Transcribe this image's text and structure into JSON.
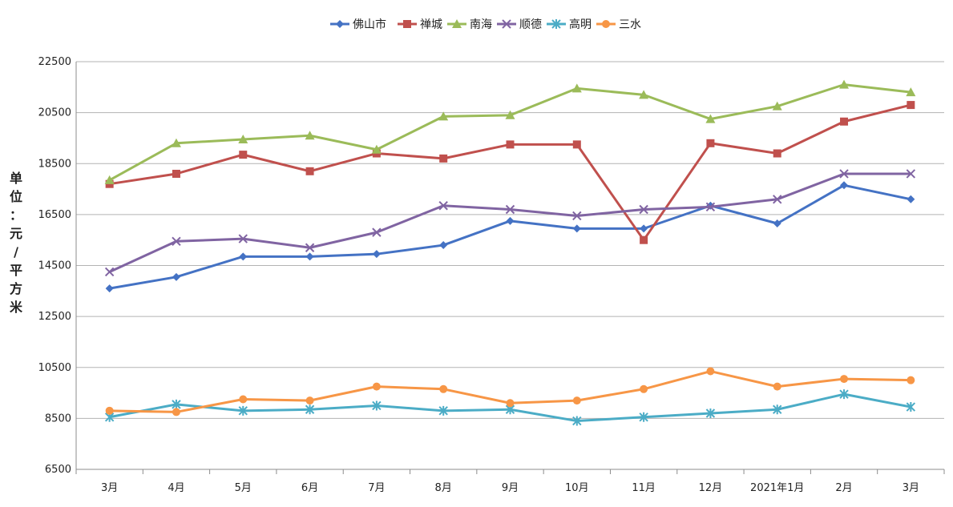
{
  "chart_data": {
    "type": "line",
    "title": "",
    "xlabel": "",
    "ylabel": "单位：元/平方米",
    "ylim": [
      6500,
      22500
    ],
    "yticks": [
      "6500",
      "8500",
      "10500",
      "12500",
      "14500",
      "16500",
      "18500",
      "20500",
      "22500"
    ],
    "grid": "horizontal",
    "legend_position": "top",
    "categories": [
      "3月",
      "4月",
      "5月",
      "6月",
      "7月",
      "8月",
      "9月",
      "10月",
      "11月",
      "12月",
      "2021年1月",
      "2月",
      "3月"
    ],
    "series": [
      {
        "name": "佛山市",
        "color": "#4472C4",
        "marker": "diamond",
        "values": [
          13600,
          14050,
          14850,
          14850,
          14950,
          15300,
          16250,
          15950,
          15950,
          16850,
          16150,
          17650,
          17100
        ]
      },
      {
        "name": "禅城",
        "color": "#C0504D",
        "marker": "square",
        "values": [
          17700,
          18100,
          18850,
          18200,
          18900,
          18700,
          19250,
          19250,
          15500,
          19300,
          18900,
          20150,
          20800
        ]
      },
      {
        "name": "南海",
        "color": "#9BBB59",
        "marker": "triangle",
        "values": [
          17850,
          19300,
          19450,
          19600,
          19050,
          20350,
          20400,
          21450,
          21200,
          20250,
          20750,
          21600,
          21300
        ]
      },
      {
        "name": "顺德",
        "color": "#8064A2",
        "marker": "x",
        "values": [
          14250,
          15450,
          15550,
          15200,
          15800,
          16850,
          16700,
          16450,
          16700,
          16800,
          17100,
          18100,
          18100
        ]
      },
      {
        "name": "高明",
        "color": "#4BACC6",
        "marker": "star",
        "values": [
          8550,
          9050,
          8800,
          8850,
          9000,
          8800,
          8850,
          8400,
          8550,
          8700,
          8850,
          9450,
          8950
        ]
      },
      {
        "name": "三水",
        "color": "#F79646",
        "marker": "circle",
        "values": [
          8800,
          8750,
          9250,
          9200,
          9750,
          9650,
          9100,
          9200,
          9650,
          10350,
          9750,
          10050,
          10000
        ]
      }
    ]
  }
}
